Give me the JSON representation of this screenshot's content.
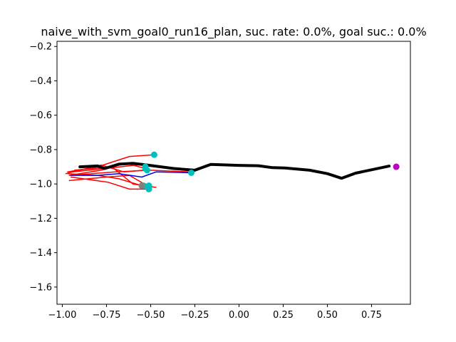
{
  "chart_data": {
    "type": "line",
    "title": "naive_with_svm_goal0_run16_plan, suc. rate: 0.0%, goal suc.: 0.0%",
    "xlabel": "",
    "ylabel": "",
    "xlim": [
      -1.03,
      0.97
    ],
    "ylim": [
      -1.7,
      -0.17
    ],
    "xticks": [
      -1.0,
      -0.75,
      -0.5,
      -0.25,
      0.0,
      0.25,
      0.5,
      0.75
    ],
    "xtick_labels": [
      "−1.00",
      "−0.75",
      "−0.50",
      "−0.25",
      "0.00",
      "0.25",
      "0.50",
      "0.75"
    ],
    "yticks": [
      -0.2,
      -0.4,
      -0.6,
      -0.8,
      -1.0,
      -1.2,
      -1.4,
      -1.6
    ],
    "ytick_labels": [
      "−0.2",
      "−0.4",
      "−0.6",
      "−0.8",
      "−1.0",
      "−1.2",
      "−1.4",
      "−1.6"
    ],
    "grid": false,
    "colors": {
      "planned": "#000000",
      "blue": "#0000ff",
      "red": "#ff0000",
      "endpoint": "#00bfbf",
      "goal": "#bf00bf"
    },
    "series": [
      {
        "color": "#ff0000",
        "width": 1.5,
        "x": [
          -0.97,
          -0.8,
          -0.62,
          -0.48
        ],
        "y": [
          -0.93,
          -0.9,
          -0.84,
          -0.83
        ]
      },
      {
        "color": "#ff0000",
        "width": 1.5,
        "x": [
          -0.96,
          -0.78,
          -0.64,
          -0.53
        ],
        "y": [
          -0.95,
          -0.92,
          -0.88,
          -0.91
        ]
      },
      {
        "color": "#ff0000",
        "width": 1.5,
        "x": [
          -0.96,
          -0.75,
          -0.62,
          -0.52
        ],
        "y": [
          -0.98,
          -0.96,
          -0.95,
          -1.01
        ]
      },
      {
        "color": "#ff0000",
        "width": 1.5,
        "x": [
          -0.95,
          -0.74,
          -0.62,
          -0.51
        ],
        "y": [
          -0.96,
          -0.99,
          -1.03,
          -1.03
        ]
      },
      {
        "color": "#ff0000",
        "width": 1.5,
        "x": [
          -0.97,
          -0.8,
          -0.68,
          -0.55
        ],
        "y": [
          -0.94,
          -0.95,
          -0.97,
          -1.01
        ]
      },
      {
        "color": "#ff0000",
        "width": 1.5,
        "x": [
          -0.94,
          -0.76,
          -0.58,
          -0.48
        ],
        "y": [
          -0.93,
          -0.91,
          -0.89,
          -0.89
        ]
      },
      {
        "color": "#ff0000",
        "width": 1.5,
        "x": [
          -0.93,
          -0.72,
          -0.6,
          -0.47
        ],
        "y": [
          -0.92,
          -0.9,
          -1.0,
          -1.02
        ]
      },
      {
        "color": "#ff0000",
        "width": 1.5,
        "x": [
          -0.98,
          -0.78,
          -0.65,
          -0.54
        ],
        "y": [
          -0.94,
          -0.89,
          -0.93,
          -0.92
        ]
      },
      {
        "color": "#ff0000",
        "width": 1.5,
        "x": [
          -0.96,
          -0.7,
          -0.5,
          -0.27
        ],
        "y": [
          -0.95,
          -0.93,
          -0.92,
          -0.93
        ]
      },
      {
        "color": "#0000ff",
        "width": 1.5,
        "x": [
          -0.95,
          -0.8,
          -0.68,
          -0.55,
          -0.47,
          -0.27
        ],
        "y": [
          -0.95,
          -0.95,
          -0.94,
          -0.96,
          -0.93,
          -0.935
        ]
      },
      {
        "color": "#000000",
        "width": 4,
        "x": [
          -0.9,
          -0.8,
          -0.76,
          -0.68,
          -0.6,
          -0.52,
          -0.37,
          -0.25,
          -0.16,
          0.0,
          0.11,
          0.19,
          0.26,
          0.4,
          0.5,
          0.58,
          0.66,
          0.85
        ],
        "y": [
          -0.9,
          -0.895,
          -0.91,
          -0.885,
          -0.88,
          -0.89,
          -0.91,
          -0.92,
          -0.886,
          -0.892,
          -0.894,
          -0.905,
          -0.907,
          -0.92,
          -0.94,
          -0.967,
          -0.937,
          -0.896
        ]
      }
    ],
    "endpoints": {
      "color": "#00bfbf",
      "x": [
        -0.48,
        -0.53,
        -0.52,
        -0.53,
        -0.54,
        -0.51,
        -0.51,
        -0.51,
        -0.27
      ],
      "y": [
        -0.83,
        -0.91,
        -0.92,
        -0.9,
        -1.01,
        -1.01,
        -1.02,
        -1.03,
        -0.935
      ]
    },
    "start_marker": {
      "color": "#808080",
      "x": [
        -0.55
      ],
      "y": [
        -1.01
      ]
    },
    "goal": {
      "color": "#bf00bf",
      "x": [
        0.89
      ],
      "y": [
        -0.9
      ]
    }
  }
}
